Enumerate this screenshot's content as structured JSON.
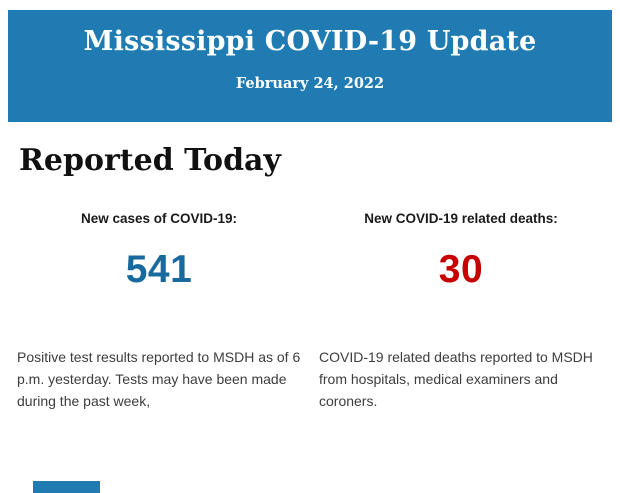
{
  "header": {
    "title": "Mississippi COVID-19 Update",
    "date": "February 24, 2022",
    "background_color": "#1f7bb2",
    "text_color": "#ffffff"
  },
  "section": {
    "heading": "Reported Today"
  },
  "stats": [
    {
      "label": "New cases of COVID-19:",
      "value": "541",
      "value_color": "#17699e",
      "description": "Positive test results reported to MSDH as of 6 p.m. yesterday. Tests may have been made during the past week,"
    },
    {
      "label": "New COVID-19 related deaths:",
      "value": "30",
      "value_color": "#c60000",
      "description": "COVID-19 related deaths reported to MSDH from hospitals, medical examiners and coroners."
    }
  ],
  "footer": {
    "next_section_color": "#1f7bb2"
  }
}
